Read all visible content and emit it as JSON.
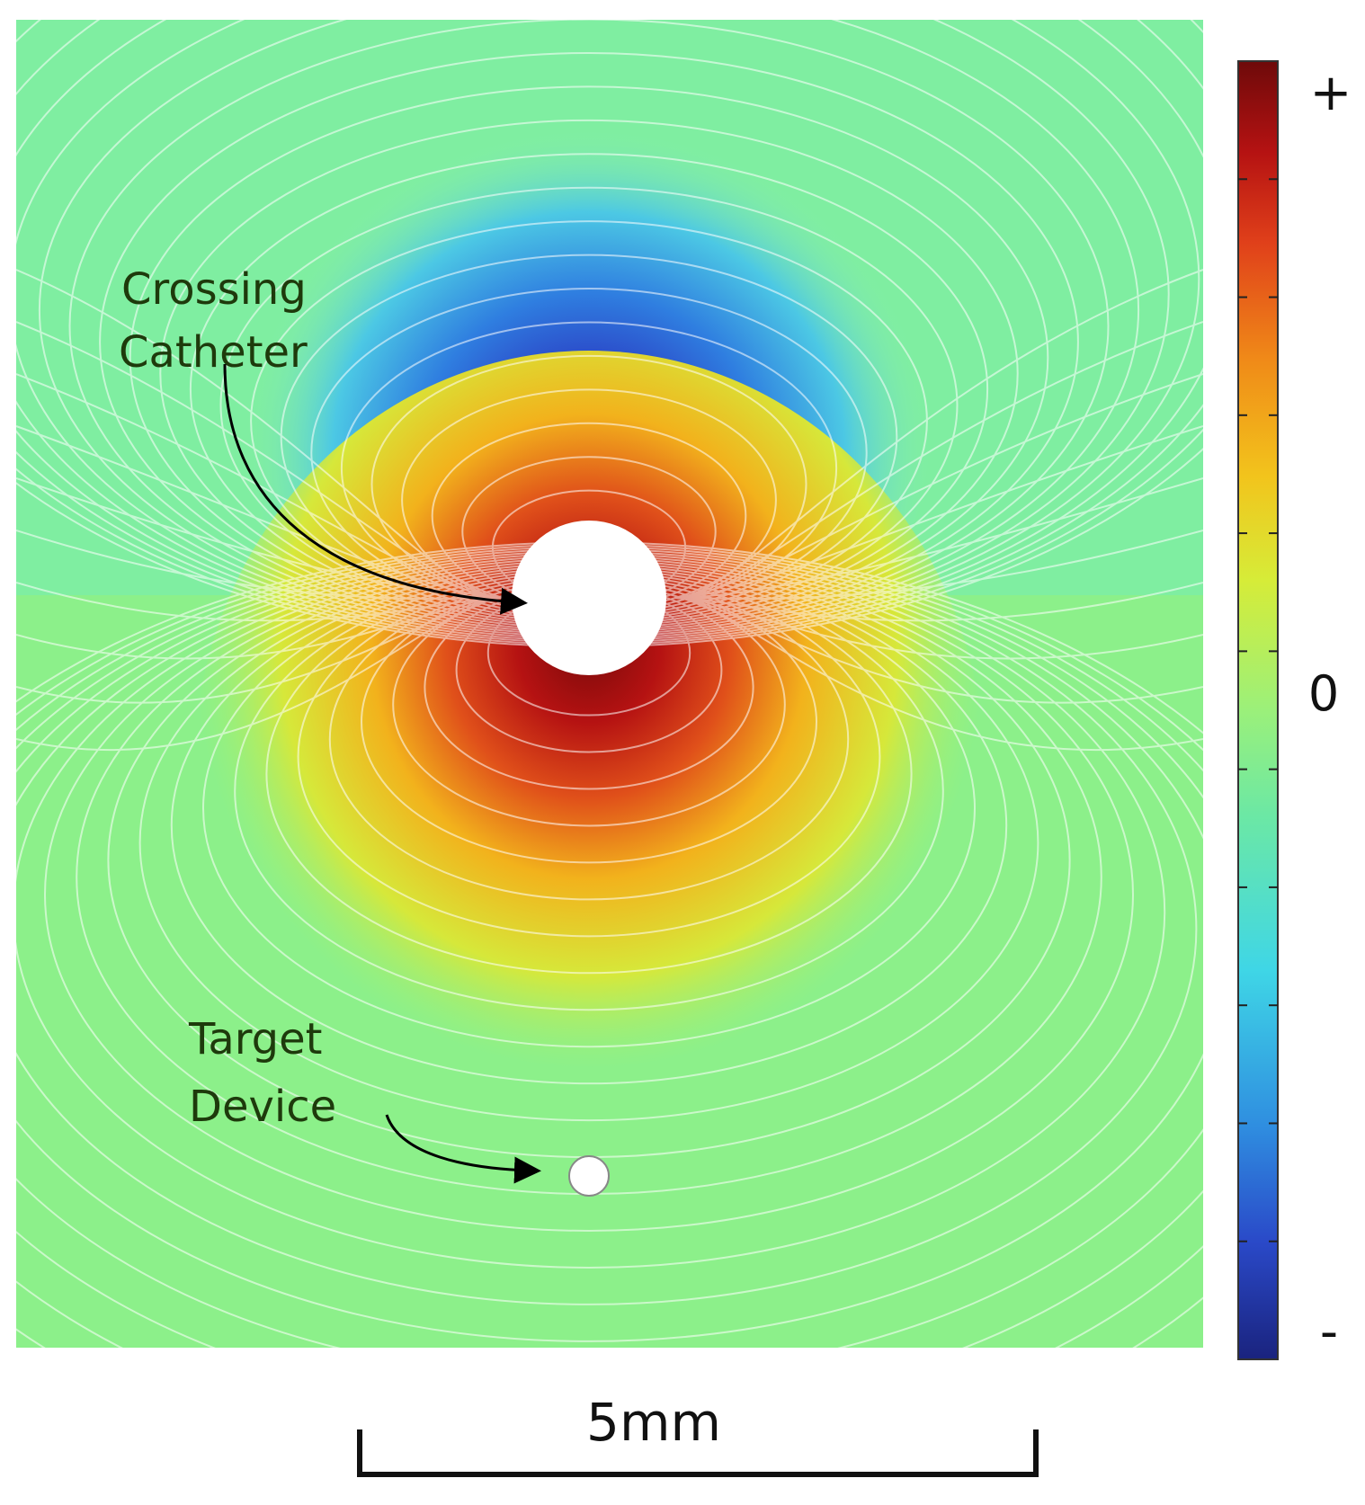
{
  "figure": {
    "annotations": [
      {
        "lines": [
          "Crossing",
          "Catheter"
        ]
      },
      {
        "lines": [
          "Target",
          "Device"
        ]
      }
    ],
    "colorbar": {
      "top_label": "+",
      "middle_label": "0",
      "bottom_label": "-",
      "colormap": [
        "#1a237e",
        "#2a49c8",
        "#2f8ee0",
        "#3fd6e6",
        "#6ce8a4",
        "#9bf07a",
        "#d6ec38",
        "#f2c41c",
        "#f08a18",
        "#e0401a",
        "#b51212",
        "#6e0a0a"
      ]
    },
    "scale_bar": {
      "label": "5mm"
    },
    "colors": {
      "field_background": "#8cf08a",
      "contour_lines": "#ffffff",
      "arrow": "#000000"
    }
  }
}
